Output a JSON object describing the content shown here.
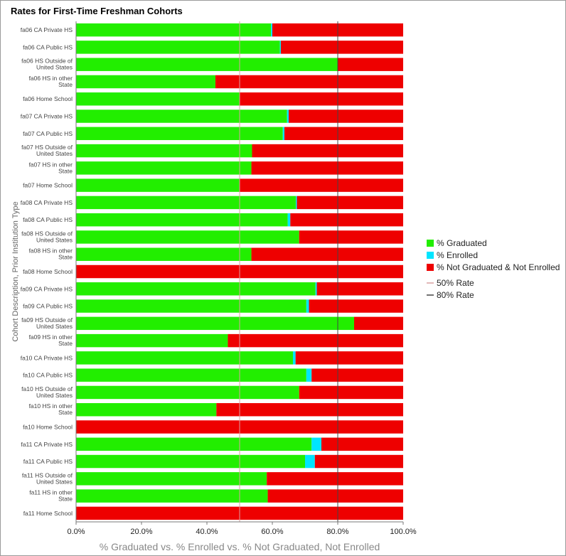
{
  "chart_data": {
    "type": "bar",
    "orientation": "horizontal",
    "stacked": true,
    "title": "Rates for First-Time Freshman Cohorts",
    "xlabel": "% Graduated vs. % Enrolled vs. % Not Graduated, Not Enrolled",
    "ylabel": "Cohort Description, Prior Institution Type",
    "xlim": [
      0,
      100
    ],
    "x_ticks": [
      "0.0%",
      "20.0%",
      "40.0%",
      "60.0%",
      "80.0%",
      "100.0%"
    ],
    "legend_position": "right",
    "categories": [
      [
        "fa06 CA Private HS"
      ],
      [
        "fa06 CA Public HS"
      ],
      [
        "fa06 HS Outside of",
        "United States"
      ],
      [
        "fa06 HS in other",
        "State"
      ],
      [
        "fa06 Home School"
      ],
      [
        "fa07 CA Private HS"
      ],
      [
        "fa07 CA Public HS"
      ],
      [
        "fa07 HS Outside of",
        "United States"
      ],
      [
        "fa07 HS in other",
        "State"
      ],
      [
        "fa07 Home School"
      ],
      [
        "fa08 CA Private HS"
      ],
      [
        "fa08 CA Public HS"
      ],
      [
        "fa08 HS Outside of",
        "United States"
      ],
      [
        "fa08 HS in other",
        "State"
      ],
      [
        "fa08 Home School"
      ],
      [
        "fa09 CA Private HS"
      ],
      [
        "fa09 CA Public HS"
      ],
      [
        "fa09 HS Outside of",
        "United States"
      ],
      [
        "fa09 HS in other",
        "State"
      ],
      [
        "fa10 CA Private HS"
      ],
      [
        "fa10 CA Public HS"
      ],
      [
        "fa10 HS Outside of",
        "United States"
      ],
      [
        "fa10 HS in other",
        "State"
      ],
      [
        "fa10 Home School"
      ],
      [
        "fa11 CA Private HS"
      ],
      [
        "fa11 CA Public HS"
      ],
      [
        "fa11 HS Outside of",
        "United States"
      ],
      [
        "fa11 HS in other",
        "State"
      ],
      [
        "fa11 Home School"
      ]
    ],
    "series": [
      {
        "name": "% Graduated",
        "color": "#22ee00",
        "values": [
          59.6,
          62.3,
          80.0,
          42.6,
          50.0,
          64.5,
          63.2,
          53.8,
          53.6,
          50.0,
          67.2,
          64.7,
          68.2,
          53.6,
          0,
          73.2,
          70.4,
          85.0,
          46.4,
          66.3,
          70.4,
          68.2,
          42.9,
          0,
          72.0,
          70.0,
          58.3,
          58.6,
          0
        ]
      },
      {
        "name": "% Enrolled",
        "color": "#00e5ff",
        "values": [
          0.4,
          0.3,
          0,
          0,
          0,
          0.5,
          0.5,
          0,
          0,
          0,
          0.3,
          0.8,
          0,
          0,
          0,
          0.4,
          0.8,
          0,
          0,
          0.8,
          1.6,
          0,
          0,
          0,
          3.0,
          3.0,
          0,
          0,
          0
        ]
      },
      {
        "name": "% Not Graduated & Not Enrolled",
        "color": "#ee0000",
        "values": [
          40.0,
          37.4,
          20.0,
          57.4,
          50.0,
          35.0,
          36.3,
          46.2,
          46.4,
          50.0,
          32.5,
          34.5,
          31.8,
          46.4,
          100.0,
          26.4,
          28.8,
          15.0,
          53.6,
          32.9,
          28.0,
          31.8,
          57.1,
          100.0,
          25.0,
          27.0,
          41.7,
          41.4,
          100.0
        ]
      }
    ],
    "reference_lines": [
      {
        "name": "50% Rate",
        "value": 50,
        "color": "#d9a0a0"
      },
      {
        "name": "80% Rate",
        "value": 80,
        "color": "#444444"
      }
    ]
  }
}
